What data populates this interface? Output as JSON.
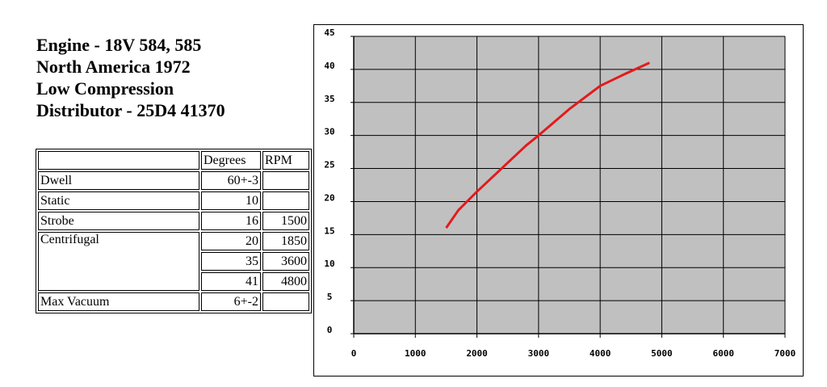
{
  "heading": [
    "Engine - 18V 584, 585",
    "North America 1972",
    "Low Compression",
    "Distributor - 25D4 41370"
  ],
  "table": {
    "columns": [
      "Degrees",
      "RPM"
    ],
    "rows": [
      {
        "label": "Dwell",
        "degrees": "60+-3"
      },
      {
        "label": "Static",
        "degrees": 10
      },
      {
        "label": "Strobe",
        "degrees": 16,
        "rpm": 1500
      },
      {
        "label": "Centrifugal",
        "degrees": 20,
        "rpm": 1850
      },
      {
        "degrees": 35,
        "rpm": 3600
      },
      {
        "degrees": 41,
        "rpm": 4800
      },
      {
        "label": "Max Vacuum",
        "degrees": "6+-2"
      }
    ]
  },
  "chart_data": {
    "type": "line",
    "x": [
      1500,
      1700,
      2000,
      2400,
      2800,
      3000,
      3500,
      4000,
      4400,
      4800
    ],
    "series": [
      {
        "color": "#e31a1c",
        "values": [
          16,
          18.7,
          21.5,
          25,
          28.5,
          30,
          34,
          37.5,
          39.3,
          41
        ]
      }
    ],
    "xlim": [
      0,
      7000
    ],
    "xticks": [
      0,
      1000,
      2000,
      3000,
      4000,
      5000,
      6000,
      7000
    ],
    "ylim": [
      0,
      45
    ],
    "yticks": [
      0,
      5,
      10,
      15,
      20,
      25,
      30,
      35,
      40,
      45
    ],
    "grid": true
  }
}
